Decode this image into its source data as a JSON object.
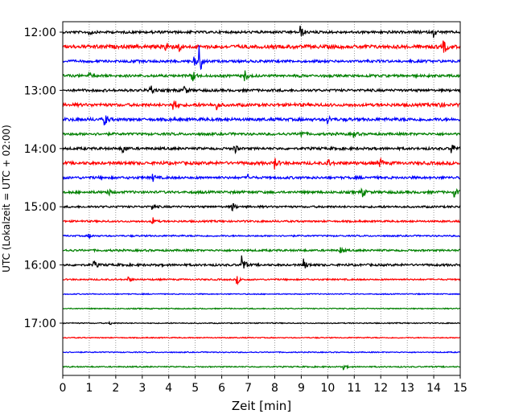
{
  "chart_data": {
    "type": "line",
    "subtype": "helicorder",
    "xlabel": "Zeit  [min]",
    "ylabel": "UTC (Lokalzeit = UTC + 02:00)",
    "xlim": [
      0,
      15
    ],
    "x_ticks": [
      0,
      1,
      2,
      3,
      4,
      5,
      6,
      7,
      8,
      9,
      10,
      11,
      12,
      13,
      14,
      15
    ],
    "x_tick_labels": [
      "0",
      "1",
      "2",
      "3",
      "4",
      "5",
      "6",
      "7",
      "8",
      "9",
      "10",
      "11",
      "12",
      "13",
      "14",
      "15"
    ],
    "y_tick_labels": [
      "12:00",
      "13:00",
      "14:00",
      "15:00",
      "16:00",
      "17:00"
    ],
    "trace_interval_min": 15,
    "grid": "vertical dotted",
    "trace_colors": [
      "#000000",
      "#ff0000",
      "#0000ff",
      "#008000"
    ],
    "traces": [
      {
        "start": "12:00",
        "amp": 0.25,
        "events": [
          [
            9.0,
            0.8
          ],
          [
            14.0,
            0.6
          ],
          [
            1.0,
            0.4
          ]
        ]
      },
      {
        "start": "12:15",
        "amp": 0.35,
        "events": [
          [
            3.9,
            1.0
          ],
          [
            14.4,
            0.8
          ],
          [
            4.4,
            0.6
          ]
        ]
      },
      {
        "start": "12:30",
        "amp": 0.25,
        "events": [
          [
            5.15,
            2.2
          ],
          [
            5.0,
            0.5
          ]
        ]
      },
      {
        "start": "12:45",
        "amp": 0.25,
        "events": [
          [
            4.9,
            0.8
          ],
          [
            6.9,
            0.7
          ],
          [
            1.0,
            0.4
          ]
        ]
      },
      {
        "start": "13:00",
        "amp": 0.25,
        "events": [
          [
            3.3,
            0.8
          ],
          [
            4.6,
            0.6
          ]
        ]
      },
      {
        "start": "13:15",
        "amp": 0.3,
        "events": [
          [
            4.2,
            0.9
          ],
          [
            5.8,
            0.6
          ],
          [
            14.2,
            0.5
          ]
        ]
      },
      {
        "start": "13:30",
        "amp": 0.3,
        "events": [
          [
            1.6,
            0.8
          ],
          [
            10.0,
            0.6
          ]
        ]
      },
      {
        "start": "13:45",
        "amp": 0.25,
        "events": [
          [
            9.0,
            0.5
          ],
          [
            11.0,
            0.4
          ]
        ]
      },
      {
        "start": "14:00",
        "amp": 0.25,
        "events": [
          [
            2.3,
            0.6
          ],
          [
            6.5,
            0.6
          ],
          [
            14.7,
            0.7
          ]
        ]
      },
      {
        "start": "14:15",
        "amp": 0.3,
        "events": [
          [
            8.0,
            0.8
          ],
          [
            10.0,
            0.6
          ],
          [
            12.0,
            0.5
          ]
        ]
      },
      {
        "start": "14:30",
        "amp": 0.25,
        "events": [
          [
            3.4,
            0.5
          ],
          [
            7.0,
            0.4
          ]
        ]
      },
      {
        "start": "14:45",
        "amp": 0.25,
        "events": [
          [
            1.7,
            0.5
          ],
          [
            11.3,
            0.7
          ],
          [
            14.8,
            0.6
          ]
        ]
      },
      {
        "start": "15:00",
        "amp": 0.2,
        "events": [
          [
            6.4,
            0.6
          ],
          [
            3.4,
            0.4
          ]
        ]
      },
      {
        "start": "15:15",
        "amp": 0.18,
        "events": [
          [
            3.4,
            0.5
          ]
        ]
      },
      {
        "start": "15:30",
        "amp": 0.15,
        "events": [
          [
            1.0,
            0.3
          ]
        ]
      },
      {
        "start": "15:45",
        "amp": 0.2,
        "events": [
          [
            10.5,
            0.4
          ]
        ]
      },
      {
        "start": "16:00",
        "amp": 0.22,
        "events": [
          [
            6.8,
            1.3
          ],
          [
            9.1,
            0.8
          ],
          [
            1.2,
            0.5
          ]
        ]
      },
      {
        "start": "16:15",
        "amp": 0.15,
        "events": [
          [
            6.6,
            0.5
          ],
          [
            2.5,
            0.3
          ]
        ]
      },
      {
        "start": "16:30",
        "amp": 0.1,
        "events": []
      },
      {
        "start": "16:45",
        "amp": 0.1,
        "events": []
      },
      {
        "start": "17:00",
        "amp": 0.1,
        "events": [
          [
            1.8,
            0.2
          ]
        ]
      },
      {
        "start": "17:15",
        "amp": 0.1,
        "events": []
      },
      {
        "start": "17:30",
        "amp": 0.1,
        "events": []
      },
      {
        "start": "17:45",
        "amp": 0.12,
        "events": [
          [
            10.6,
            0.3
          ]
        ]
      }
    ]
  }
}
